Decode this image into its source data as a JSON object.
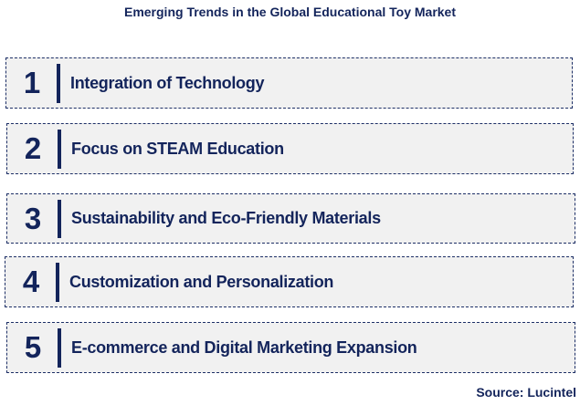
{
  "title": "Emerging Trends in the Global Educational Toy Market",
  "items": [
    {
      "number": "1",
      "label": "Integration of Technology"
    },
    {
      "number": "2",
      "label": "Focus on STEAM Education"
    },
    {
      "number": "3",
      "label": "Sustainability and Eco-Friendly Materials"
    },
    {
      "number": "4",
      "label": "Customization and Personalization"
    },
    {
      "number": "5",
      "label": "E-commerce and Digital Marketing Expansion"
    }
  ],
  "source": "Source: Lucintel",
  "colors": {
    "text": "#13245b",
    "box_fill": "#f1f1f1"
  }
}
